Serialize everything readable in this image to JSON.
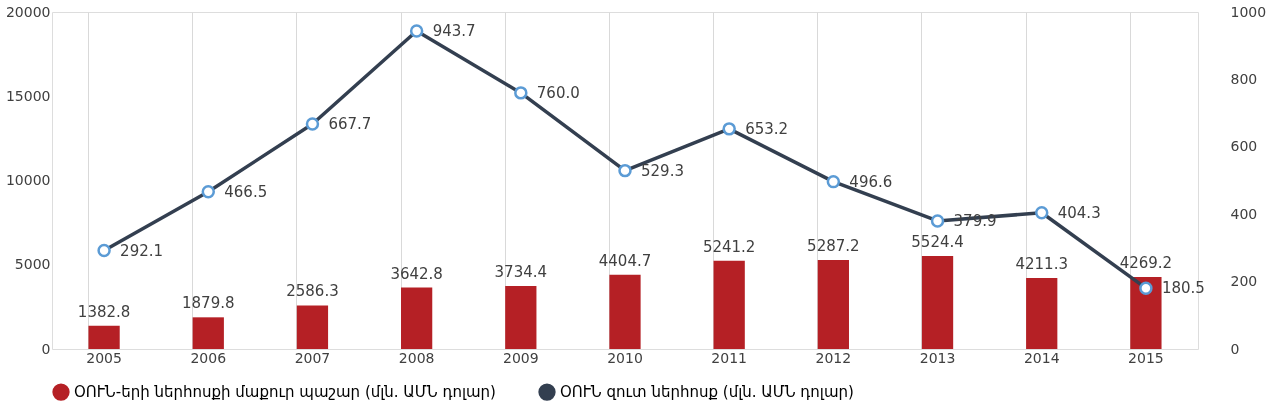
{
  "chart_data": {
    "type": "bar",
    "categories": [
      "2005",
      "2006",
      "2007",
      "2008",
      "2009",
      "2010",
      "2011",
      "2012",
      "2013",
      "2014",
      "2015"
    ],
    "series": [
      {
        "name": "ՕՈՒՆ-երի ներհոսքի մաքուր պաշար (մլն. ԱՄՆ դոլար)",
        "color": "#b52025",
        "values": [
          1382.8,
          1879.8,
          2586.3,
          3642.8,
          3734.4,
          4404.7,
          5241.2,
          5287.2,
          5524.4,
          4211.3,
          4269.2
        ],
        "value_labels": [
          "1382.8",
          "1879.8",
          "2586.3",
          "3642.8",
          "3734.4",
          "4404.7",
          "5241.2",
          "5287.2",
          "5524.4",
          "4211.3",
          "4269.2"
        ]
      },
      {
        "name": "ՕՈՒՆ զուտ ներհոսք (մլն. ԱՄՆ դոլար)",
        "type": "line",
        "axis": "y2",
        "color": "#333f50",
        "marker": "circle",
        "values": [
          292.1,
          466.5,
          667.7,
          943.7,
          760.0,
          529.3,
          653.2,
          496.6,
          379.9,
          404.3,
          180.5
        ],
        "value_labels": [
          "292.1",
          "466.5",
          "667.7",
          "943.7",
          "760.0",
          "529.3",
          "653.2",
          "496.6",
          "379.9",
          "404.3",
          "180.5"
        ]
      }
    ],
    "ylim": [
      0,
      20000
    ],
    "yticks": [
      0,
      5000,
      10000,
      15000,
      20000
    ],
    "y2lim": [
      0,
      1000
    ],
    "y2ticks": [
      0,
      200,
      400,
      600,
      800,
      1000
    ],
    "grid": "x",
    "legend": "bottom"
  }
}
